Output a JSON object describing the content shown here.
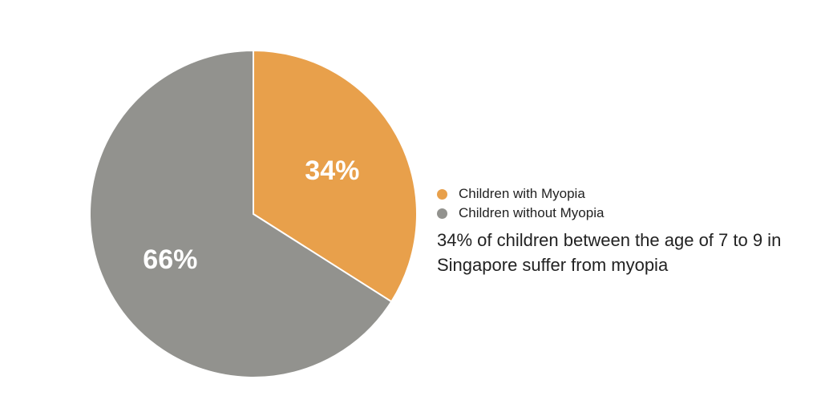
{
  "chart_data": {
    "type": "pie",
    "categories": [
      "Children with Myopia",
      "Children without Myopia"
    ],
    "values": [
      34,
      66
    ],
    "value_labels": [
      "34%",
      "66%"
    ],
    "colors": [
      "#E8A04B",
      "#92928E"
    ],
    "legend_position": "right",
    "annotation": "34% of children between the age of 7 to 9 in Singapore suffer from myopia"
  }
}
